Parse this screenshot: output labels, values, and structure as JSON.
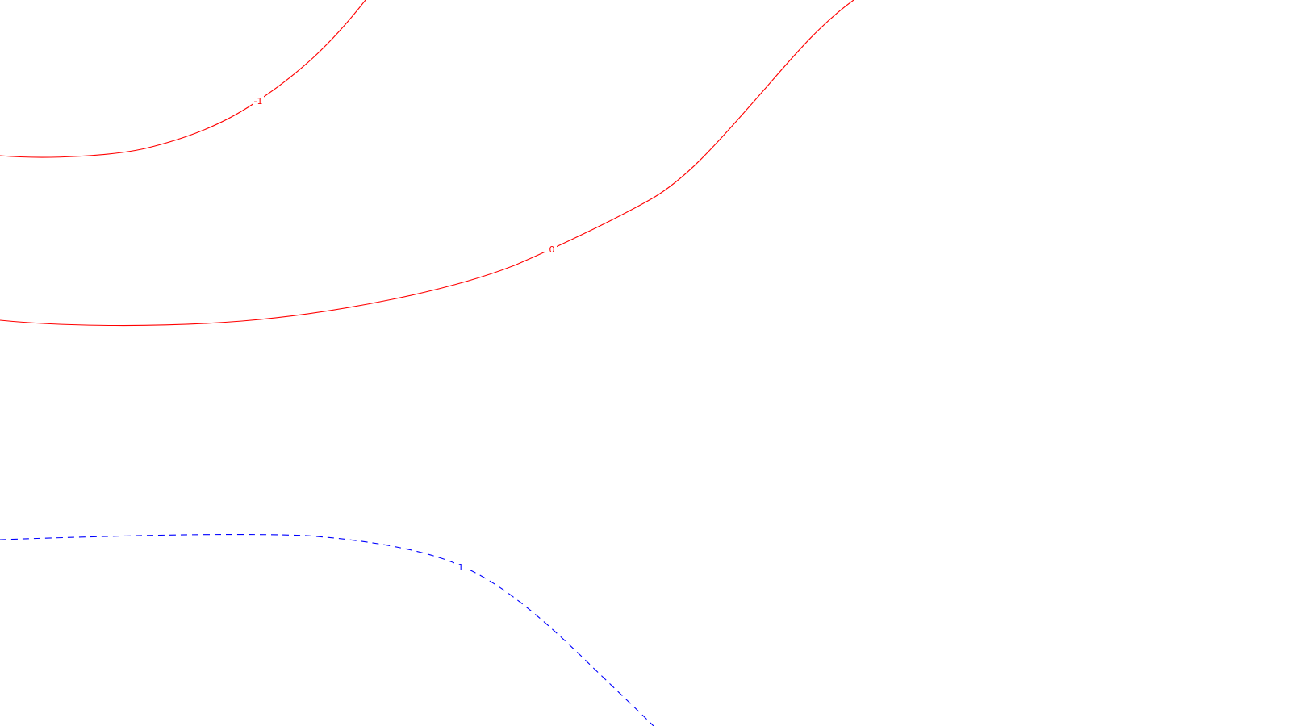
{
  "contours": [
    {
      "label": "-1",
      "color": "#ff0000",
      "style": "solid"
    },
    {
      "label": "0",
      "color": "#ff0000",
      "style": "solid"
    },
    {
      "label": "1",
      "color": "#0000ff",
      "style": "dashed"
    }
  ]
}
